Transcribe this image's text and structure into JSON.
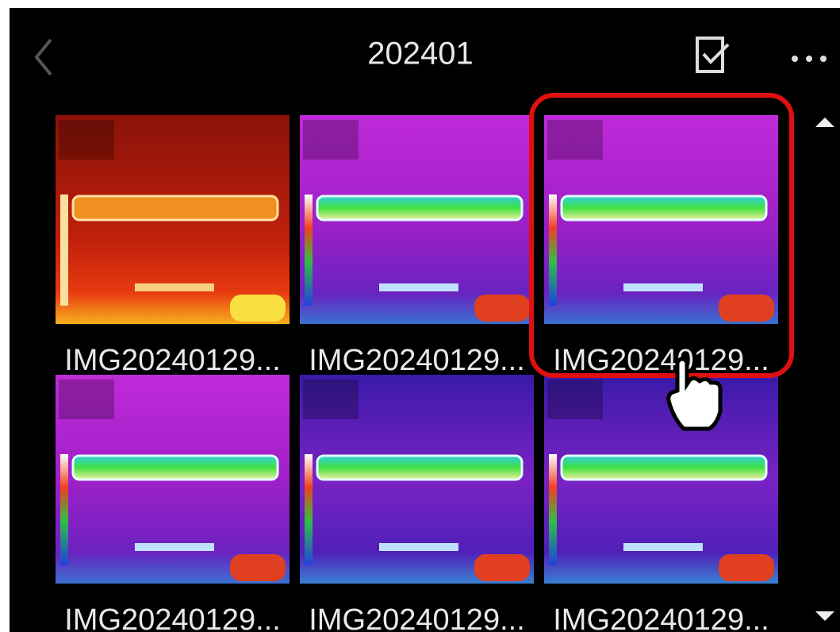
{
  "header": {
    "title": "202401"
  },
  "items": [
    {
      "label": "IMG20240129..."
    },
    {
      "label": "IMG20240129..."
    },
    {
      "label": "IMG20240129..."
    },
    {
      "label": "IMG20240129..."
    },
    {
      "label": "IMG20240129..."
    },
    {
      "label": "IMG20240129..."
    }
  ]
}
